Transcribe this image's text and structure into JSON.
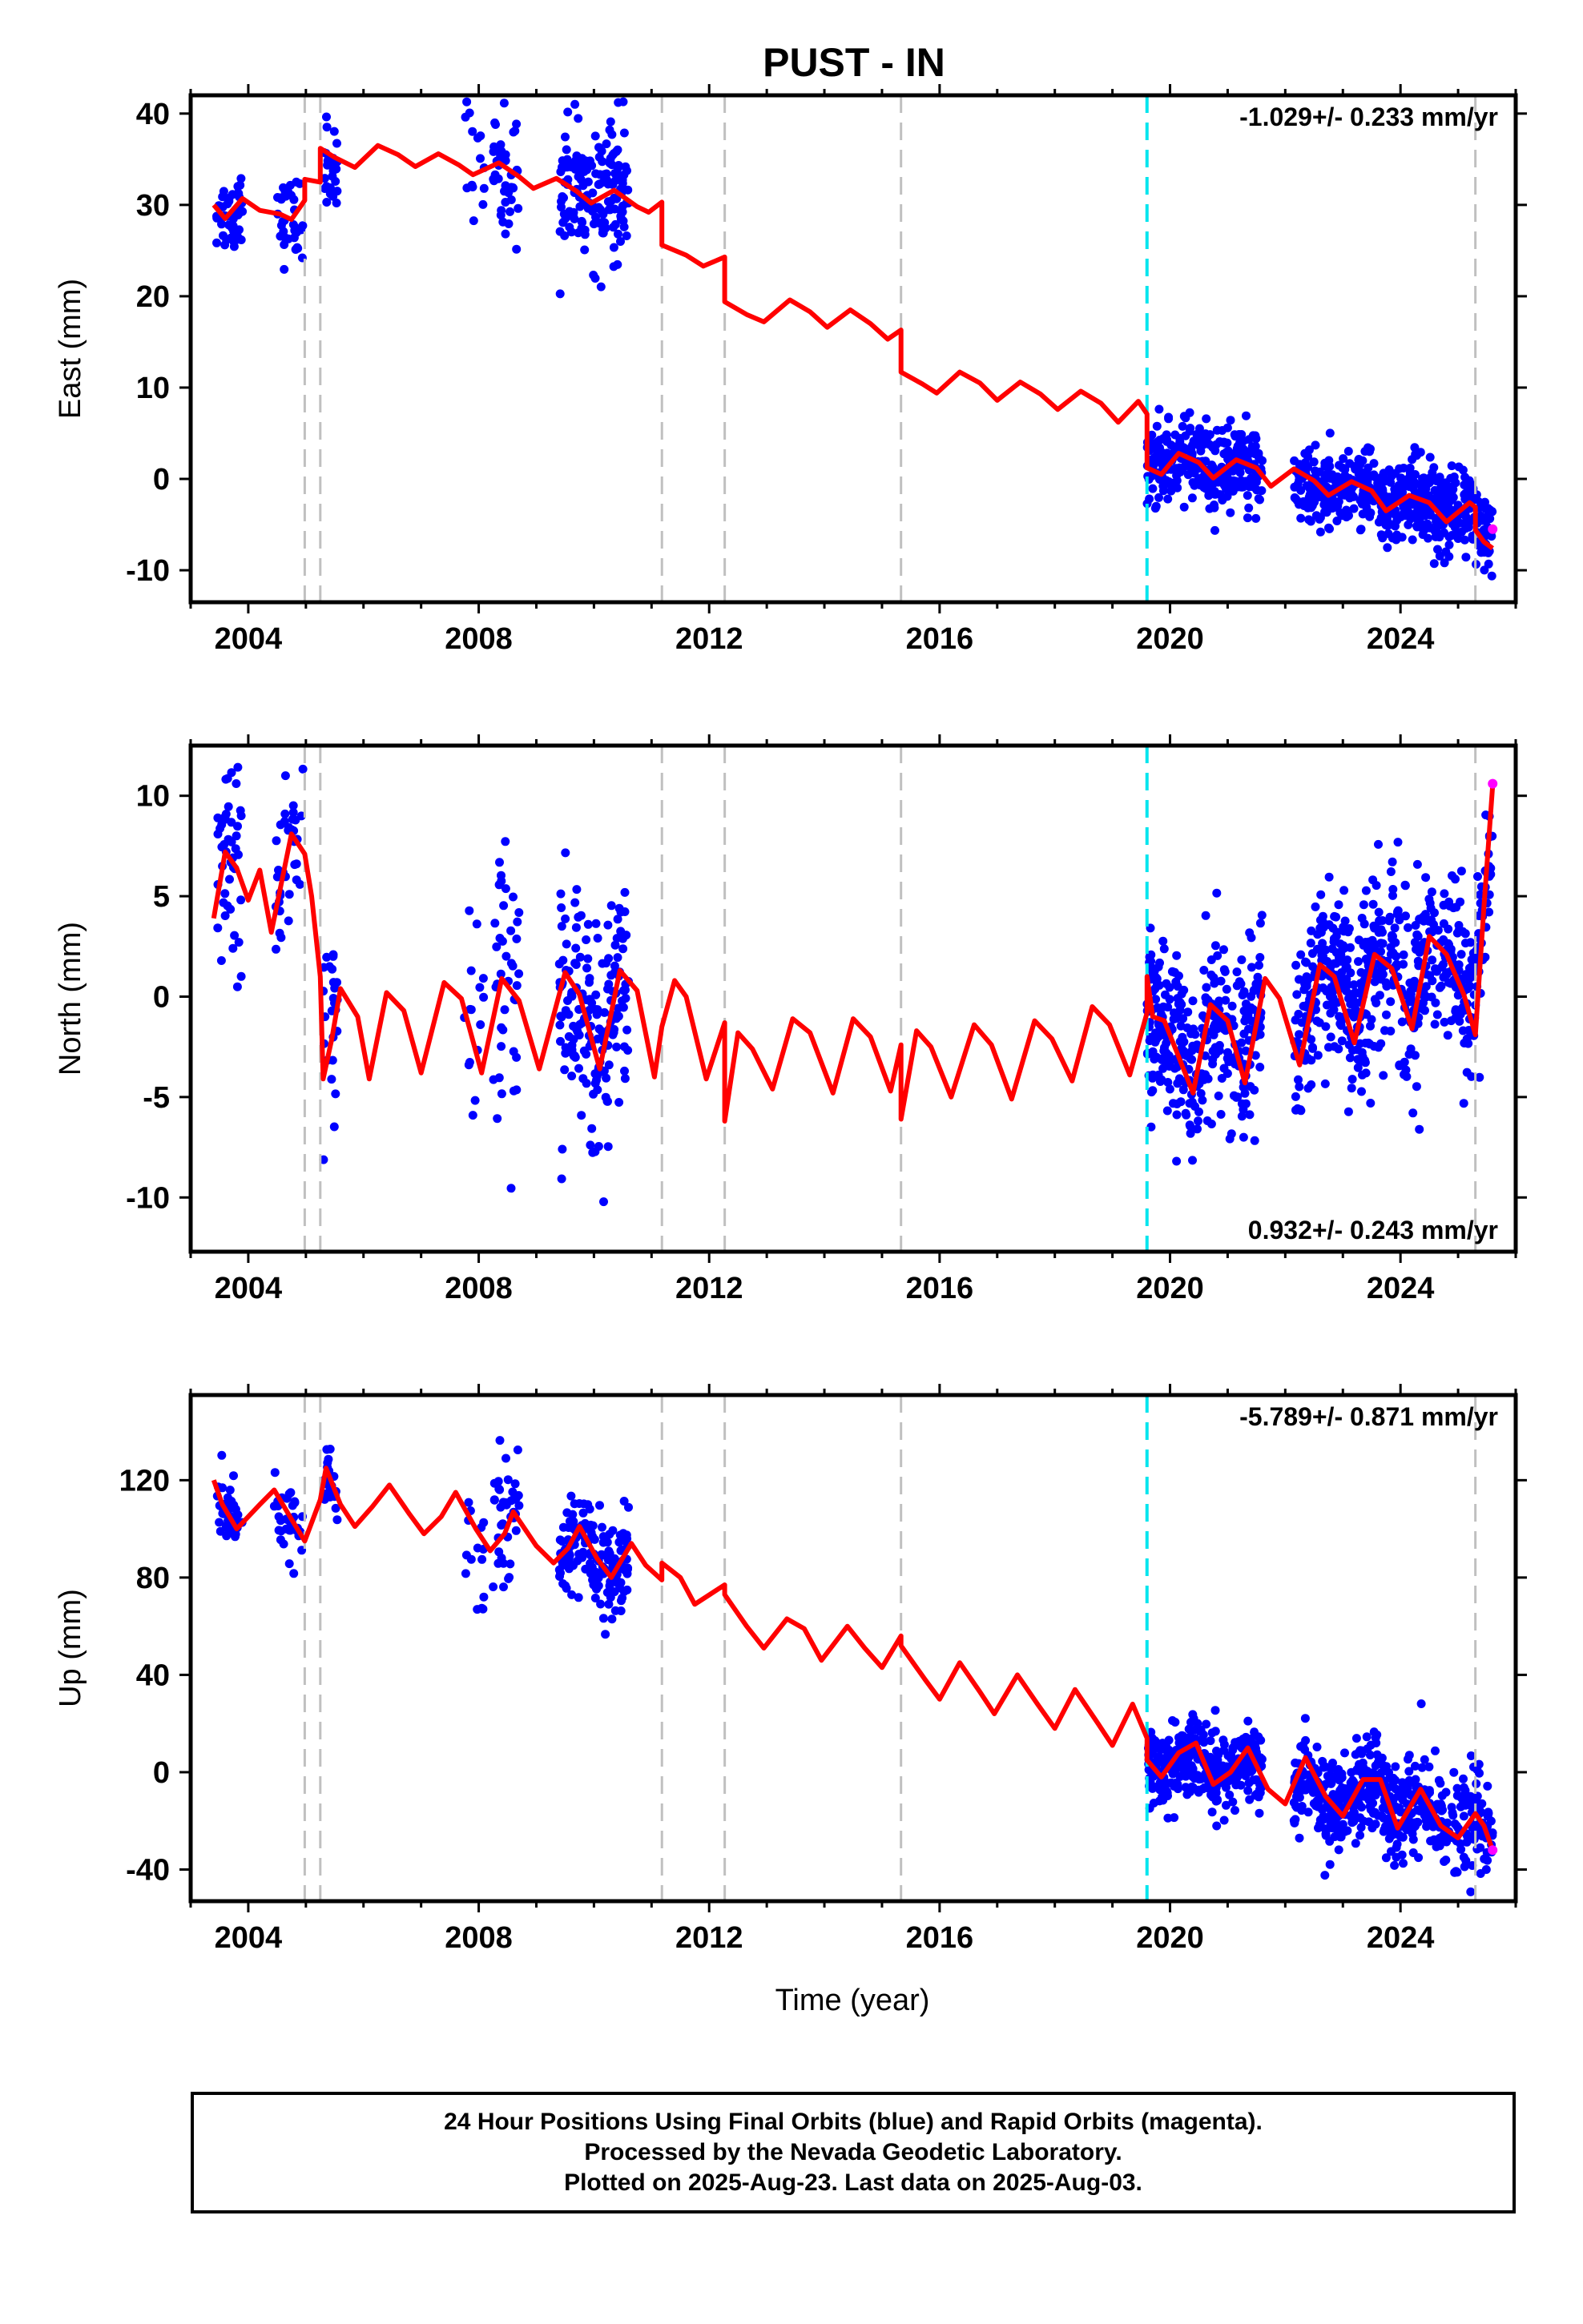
{
  "title": "PUST - IN",
  "xlabel": "Time (year)",
  "footer": {
    "line1": "24 Hour Positions Using Final Orbits (blue) and Rapid Orbits (magenta).",
    "line2": "Processed by the Nevada Geodetic Laboratory.",
    "line3": "Plotted on 2025-Aug-23. Last data on 2025-Aug-03."
  },
  "colors": {
    "final_orbits": "#0000ff",
    "rapid_orbits": "#ff00ff",
    "model": "#ff0000",
    "equipment_change": "#c0c0c0",
    "earthquake": "#00e5ee"
  },
  "chart_data": [
    {
      "type": "scatter",
      "panel": "East",
      "ylabel": "East (mm)",
      "rate_label": "-1.029+/- 0.233 mm/yr",
      "xlim": [
        2003.0,
        2026.0
      ],
      "ylim": [
        -13.5,
        42
      ],
      "xticks": [
        2004,
        2008,
        2012,
        2016,
        2020,
        2024
      ],
      "yticks": [
        -10,
        0,
        10,
        20,
        30,
        40
      ],
      "gray_dashed_lines": [
        2004.98,
        2005.25,
        2011.18,
        2012.27,
        2015.33,
        2025.3
      ],
      "cyan_dashed_lines": [
        2019.6
      ],
      "model_line": [
        [
          2003.4,
          30.0
        ],
        [
          2003.6,
          28.5
        ],
        [
          2003.9,
          30.7
        ],
        [
          2004.2,
          29.4
        ],
        [
          2004.55,
          29.0
        ],
        [
          2004.75,
          28.4
        ],
        [
          2004.98,
          30.5
        ],
        [
          2004.98,
          32.8
        ],
        [
          2005.25,
          32.5
        ],
        [
          2005.25,
          36.2
        ],
        [
          2005.5,
          35.2
        ],
        [
          2005.85,
          34.1
        ],
        [
          2006.25,
          36.5
        ],
        [
          2006.6,
          35.5
        ],
        [
          2006.9,
          34.2
        ],
        [
          2007.3,
          35.6
        ],
        [
          2007.65,
          34.4
        ],
        [
          2007.9,
          33.3
        ],
        [
          2008.35,
          34.6
        ],
        [
          2008.7,
          33.1
        ],
        [
          2008.95,
          31.8
        ],
        [
          2009.35,
          32.9
        ],
        [
          2009.7,
          31.5
        ],
        [
          2009.95,
          30.2
        ],
        [
          2010.35,
          31.6
        ],
        [
          2010.75,
          29.8
        ],
        [
          2010.95,
          29.2
        ],
        [
          2011.18,
          30.3
        ],
        [
          2011.18,
          25.6
        ],
        [
          2011.6,
          24.5
        ],
        [
          2011.9,
          23.3
        ],
        [
          2012.27,
          24.3
        ],
        [
          2012.27,
          19.4
        ],
        [
          2012.65,
          18.0
        ],
        [
          2012.95,
          17.2
        ],
        [
          2013.4,
          19.6
        ],
        [
          2013.75,
          18.3
        ],
        [
          2014.05,
          16.6
        ],
        [
          2014.45,
          18.5
        ],
        [
          2014.8,
          17.0
        ],
        [
          2015.1,
          15.3
        ],
        [
          2015.33,
          16.3
        ],
        [
          2015.33,
          11.7
        ],
        [
          2015.7,
          10.4
        ],
        [
          2015.95,
          9.4
        ],
        [
          2016.35,
          11.7
        ],
        [
          2016.7,
          10.5
        ],
        [
          2017.0,
          8.6
        ],
        [
          2017.4,
          10.6
        ],
        [
          2017.75,
          9.3
        ],
        [
          2018.05,
          7.6
        ],
        [
          2018.45,
          9.6
        ],
        [
          2018.8,
          8.3
        ],
        [
          2019.1,
          6.2
        ],
        [
          2019.45,
          8.5
        ],
        [
          2019.6,
          7.1
        ],
        [
          2019.6,
          1.2
        ],
        [
          2019.85,
          0.5
        ],
        [
          2020.15,
          2.8
        ],
        [
          2020.5,
          1.8
        ],
        [
          2020.75,
          0.1
        ],
        [
          2021.15,
          2.1
        ],
        [
          2021.5,
          1.2
        ],
        [
          2021.75,
          -0.8
        ],
        [
          2022.15,
          1.1
        ],
        [
          2022.5,
          -0.2
        ],
        [
          2022.75,
          -1.8
        ],
        [
          2023.15,
          -0.3
        ],
        [
          2023.5,
          -1.3
        ],
        [
          2023.75,
          -3.5
        ],
        [
          2024.15,
          -1.8
        ],
        [
          2024.5,
          -2.6
        ],
        [
          2024.8,
          -4.7
        ],
        [
          2025.2,
          -2.6
        ],
        [
          2025.3,
          -3.1
        ],
        [
          2025.3,
          -5.6
        ],
        [
          2025.45,
          -6.9
        ],
        [
          2025.6,
          -7.6
        ]
      ],
      "rapid_points": [
        [
          2025.6,
          -5.5
        ]
      ],
      "final_density": [
        [
          2003.45,
          2003.9,
          29,
          2.2,
          45
        ],
        [
          2004.45,
          2004.95,
          27,
          2.2,
          35
        ],
        [
          2005.3,
          2005.55,
          32,
          3,
          25
        ],
        [
          2007.75,
          2008.1,
          33,
          4,
          15
        ],
        [
          2008.25,
          2008.7,
          32,
          3.5,
          40
        ],
        [
          2009.4,
          2010.6,
          32,
          3.5,
          170
        ],
        [
          2019.6,
          2021.6,
          1.5,
          2.2,
          330
        ],
        [
          2022.15,
          2025.6,
          -2.5,
          2.2,
          560
        ]
      ]
    },
    {
      "type": "scatter",
      "panel": "North",
      "ylabel": "North (mm)",
      "rate_label": "0.932+/- 0.243 mm/yr",
      "xlim": [
        2003.0,
        2026.0
      ],
      "ylim": [
        -12.7,
        12.5
      ],
      "xticks": [
        2004,
        2008,
        2012,
        2016,
        2020,
        2024
      ],
      "yticks": [
        -10,
        -5,
        0,
        5,
        10
      ],
      "gray_dashed_lines": [
        2004.98,
        2005.25,
        2011.18,
        2012.27,
        2015.33,
        2025.3
      ],
      "cyan_dashed_lines": [
        2019.6
      ],
      "model_line": [
        [
          2003.4,
          3.9
        ],
        [
          2003.6,
          7.2
        ],
        [
          2003.8,
          6.4
        ],
        [
          2004.0,
          4.8
        ],
        [
          2004.2,
          6.3
        ],
        [
          2004.4,
          3.2
        ],
        [
          2004.75,
          8.1
        ],
        [
          2004.98,
          7.1
        ],
        [
          2005.1,
          5.0
        ],
        [
          2005.25,
          1.0
        ],
        [
          2005.3,
          -4.1
        ],
        [
          2005.45,
          -2.1
        ],
        [
          2005.6,
          0.4
        ],
        [
          2005.9,
          -1.0
        ],
        [
          2006.1,
          -4.1
        ],
        [
          2006.4,
          0.2
        ],
        [
          2006.7,
          -0.7
        ],
        [
          2007.0,
          -3.8
        ],
        [
          2007.4,
          0.7
        ],
        [
          2007.7,
          -0.1
        ],
        [
          2008.05,
          -3.8
        ],
        [
          2008.4,
          0.9
        ],
        [
          2008.7,
          -0.2
        ],
        [
          2009.05,
          -3.6
        ],
        [
          2009.5,
          1.2
        ],
        [
          2009.75,
          0.1
        ],
        [
          2010.1,
          -3.6
        ],
        [
          2010.45,
          1.3
        ],
        [
          2010.75,
          0.3
        ],
        [
          2011.05,
          -4.0
        ],
        [
          2011.18,
          -1.5
        ],
        [
          2011.4,
          0.8
        ],
        [
          2011.6,
          0.0
        ],
        [
          2011.95,
          -4.1
        ],
        [
          2012.27,
          -1.3
        ],
        [
          2012.27,
          -6.2
        ],
        [
          2012.5,
          -1.8
        ],
        [
          2012.75,
          -2.6
        ],
        [
          2013.1,
          -4.6
        ],
        [
          2013.45,
          -1.1
        ],
        [
          2013.75,
          -1.8
        ],
        [
          2014.15,
          -4.8
        ],
        [
          2014.5,
          -1.1
        ],
        [
          2014.8,
          -2.0
        ],
        [
          2015.15,
          -4.7
        ],
        [
          2015.33,
          -2.4
        ],
        [
          2015.33,
          -6.1
        ],
        [
          2015.6,
          -1.7
        ],
        [
          2015.85,
          -2.5
        ],
        [
          2016.2,
          -5.0
        ],
        [
          2016.6,
          -1.4
        ],
        [
          2016.9,
          -2.4
        ],
        [
          2017.25,
          -5.1
        ],
        [
          2017.65,
          -1.2
        ],
        [
          2017.95,
          -2.1
        ],
        [
          2018.3,
          -4.2
        ],
        [
          2018.65,
          -0.5
        ],
        [
          2018.95,
          -1.4
        ],
        [
          2019.3,
          -3.9
        ],
        [
          2019.6,
          -0.8
        ],
        [
          2019.6,
          1.0
        ],
        [
          2019.7,
          -1.0
        ],
        [
          2019.9,
          -1.2
        ],
        [
          2020.15,
          -3.0
        ],
        [
          2020.4,
          -4.8
        ],
        [
          2020.7,
          -0.4
        ],
        [
          2021.0,
          -1.2
        ],
        [
          2021.3,
          -4.3
        ],
        [
          2021.65,
          0.9
        ],
        [
          2021.9,
          -0.1
        ],
        [
          2022.25,
          -3.4
        ],
        [
          2022.6,
          1.6
        ],
        [
          2022.85,
          1.0
        ],
        [
          2023.2,
          -2.3
        ],
        [
          2023.55,
          2.1
        ],
        [
          2023.85,
          1.4
        ],
        [
          2024.2,
          -1.6
        ],
        [
          2024.5,
          3.0
        ],
        [
          2024.8,
          2.1
        ],
        [
          2025.1,
          0.1
        ],
        [
          2025.3,
          -1.9
        ],
        [
          2025.45,
          4.5
        ],
        [
          2025.6,
          10.5
        ]
      ],
      "rapid_points": [
        [
          2025.6,
          10.6
        ]
      ],
      "final_density": [
        [
          2003.45,
          2003.9,
          7,
          2.3,
          45
        ],
        [
          2004.45,
          2004.95,
          8,
          1.8,
          35
        ],
        [
          2005.3,
          2005.55,
          1.5,
          2.5,
          25
        ],
        [
          2007.75,
          2008.1,
          -1,
          4,
          15
        ],
        [
          2008.25,
          2008.7,
          -2,
          3.5,
          40
        ],
        [
          2009.4,
          2010.6,
          -0.5,
          2.8,
          170
        ],
        [
          2019.6,
          2021.6,
          -2,
          2.3,
          330
        ],
        [
          2022.15,
          2025.3,
          1.5,
          2.2,
          520
        ],
        [
          2025.3,
          2025.6,
          6.5,
          2,
          40
        ]
      ]
    },
    {
      "type": "scatter",
      "panel": "Up",
      "ylabel": "Up (mm)",
      "rate_label": "-5.789+/- 0.871 mm/yr",
      "xlim": [
        2003.0,
        2026.0
      ],
      "ylim": [
        -53,
        155
      ],
      "xticks": [
        2004,
        2008,
        2012,
        2016,
        2020,
        2024
      ],
      "yticks": [
        -40,
        0,
        40,
        80,
        120
      ],
      "gray_dashed_lines": [
        2004.98,
        2005.25,
        2011.18,
        2012.27,
        2015.33,
        2025.3
      ],
      "cyan_dashed_lines": [
        2019.6
      ],
      "model_line": [
        [
          2003.4,
          120
        ],
        [
          2003.55,
          110
        ],
        [
          2003.8,
          100
        ],
        [
          2004.2,
          110
        ],
        [
          2004.45,
          116
        ],
        [
          2004.75,
          104
        ],
        [
          2004.98,
          95
        ],
        [
          2005.25,
          112
        ],
        [
          2005.35,
          125
        ],
        [
          2005.6,
          110
        ],
        [
          2005.85,
          101
        ],
        [
          2006.15,
          109
        ],
        [
          2006.45,
          118
        ],
        [
          2006.8,
          106
        ],
        [
          2007.05,
          98
        ],
        [
          2007.35,
          105
        ],
        [
          2007.6,
          115
        ],
        [
          2007.95,
          100
        ],
        [
          2008.2,
          91
        ],
        [
          2008.45,
          98
        ],
        [
          2008.6,
          107
        ],
        [
          2009.0,
          93
        ],
        [
          2009.3,
          86
        ],
        [
          2009.55,
          92
        ],
        [
          2009.75,
          101
        ],
        [
          2010.05,
          88
        ],
        [
          2010.3,
          80
        ],
        [
          2010.65,
          94
        ],
        [
          2010.9,
          85
        ],
        [
          2011.18,
          79
        ],
        [
          2011.18,
          86
        ],
        [
          2011.5,
          80
        ],
        [
          2011.75,
          69
        ],
        [
          2012.27,
          77
        ],
        [
          2012.27,
          73
        ],
        [
          2012.65,
          60
        ],
        [
          2012.95,
          51
        ],
        [
          2013.35,
          63
        ],
        [
          2013.65,
          59
        ],
        [
          2013.95,
          46
        ],
        [
          2014.4,
          60
        ],
        [
          2014.7,
          51
        ],
        [
          2015.0,
          43
        ],
        [
          2015.33,
          56
        ],
        [
          2015.33,
          52
        ],
        [
          2015.75,
          38
        ],
        [
          2016.0,
          30
        ],
        [
          2016.35,
          45
        ],
        [
          2016.7,
          33
        ],
        [
          2016.95,
          24
        ],
        [
          2017.35,
          40
        ],
        [
          2017.7,
          28
        ],
        [
          2018.0,
          18
        ],
        [
          2018.35,
          34
        ],
        [
          2018.75,
          20
        ],
        [
          2019.0,
          11
        ],
        [
          2019.35,
          28
        ],
        [
          2019.6,
          14
        ],
        [
          2019.6,
          5
        ],
        [
          2019.85,
          -2
        ],
        [
          2020.15,
          8
        ],
        [
          2020.45,
          12
        ],
        [
          2020.75,
          -5
        ],
        [
          2021.05,
          0
        ],
        [
          2021.35,
          10
        ],
        [
          2021.7,
          -7
        ],
        [
          2022.0,
          -13
        ],
        [
          2022.35,
          6
        ],
        [
          2022.7,
          -10
        ],
        [
          2023.0,
          -18
        ],
        [
          2023.35,
          -3
        ],
        [
          2023.65,
          -3
        ],
        [
          2023.95,
          -23
        ],
        [
          2024.35,
          -7
        ],
        [
          2024.7,
          -22
        ],
        [
          2025.0,
          -27
        ],
        [
          2025.3,
          -17
        ],
        [
          2025.45,
          -22
        ],
        [
          2025.6,
          -32
        ]
      ],
      "rapid_points": [
        [
          2025.6,
          -32
        ]
      ],
      "final_density": [
        [
          2003.45,
          2003.9,
          112,
          7,
          45
        ],
        [
          2004.45,
          2004.95,
          95,
          8,
          35
        ],
        [
          2005.3,
          2005.55,
          112,
          8,
          25
        ],
        [
          2007.75,
          2008.1,
          88,
          20,
          15
        ],
        [
          2008.25,
          2008.7,
          112,
          17,
          40
        ],
        [
          2009.4,
          2010.6,
          85,
          9,
          170
        ],
        [
          2019.6,
          2021.6,
          0,
          8,
          330
        ],
        [
          2022.15,
          2025.6,
          -15,
          10,
          560
        ]
      ]
    }
  ]
}
